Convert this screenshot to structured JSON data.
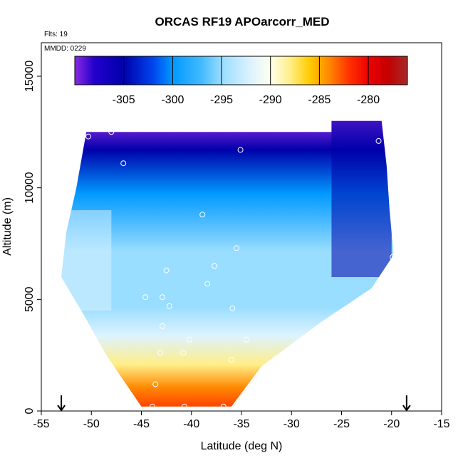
{
  "chart_data": {
    "type": "heatmap",
    "title": "ORCAS RF19 APOarcorr_MED",
    "annotations": {
      "flights": "Flts: 19",
      "mmdd": "MMDD: 0229"
    },
    "xlabel": "Latitude (deg N)",
    "ylabel": "Altitude (m)",
    "xlim": [
      -55,
      -15
    ],
    "ylim": [
      0,
      16500
    ],
    "x_ticks": [
      -55,
      -50,
      -45,
      -40,
      -35,
      -30,
      -25,
      -20,
      -15
    ],
    "y_ticks": [
      0,
      5000,
      10000,
      15000
    ],
    "colorbar": {
      "range": [
        -310,
        -276
      ],
      "ticks": [
        -305,
        -300,
        -295,
        -290,
        -285,
        -280
      ],
      "stops": [
        {
          "v": -310,
          "color": "#8a2be2"
        },
        {
          "v": -308,
          "color": "#2200cc"
        },
        {
          "v": -305,
          "color": "#0000aa"
        },
        {
          "v": -302,
          "color": "#0044ee"
        },
        {
          "v": -300,
          "color": "#0099ff"
        },
        {
          "v": -297,
          "color": "#44bbff"
        },
        {
          "v": -295,
          "color": "#99ddff"
        },
        {
          "v": -292,
          "color": "#ddf3ff"
        },
        {
          "v": -290,
          "color": "#ffffee"
        },
        {
          "v": -288,
          "color": "#ffee88"
        },
        {
          "v": -286,
          "color": "#ffcc00"
        },
        {
          "v": -284,
          "color": "#ff8800"
        },
        {
          "v": -282,
          "color": "#ff3300"
        },
        {
          "v": -280,
          "color": "#ee0000"
        },
        {
          "v": -278,
          "color": "#c40000"
        },
        {
          "v": -276,
          "color": "#a52a2a"
        }
      ]
    },
    "domain_outline": [
      [
        -50.5,
        12500
      ],
      [
        -26,
        12500
      ],
      [
        -26,
        13000
      ],
      [
        -21,
        13000
      ],
      [
        -20.5,
        11000
      ],
      [
        -20.2,
        9000
      ],
      [
        -19.8,
        7000
      ],
      [
        -22,
        5500
      ],
      [
        -27,
        4000
      ],
      [
        -33,
        2000
      ],
      [
        -36,
        200
      ],
      [
        -45,
        200
      ],
      [
        -48.5,
        2500
      ],
      [
        -51,
        4500
      ],
      [
        -53,
        6000
      ],
      [
        -52.5,
        8000
      ],
      [
        -51.5,
        10000
      ]
    ],
    "series": [
      {
        "name": "",
        "points": [
          [
            -50.3,
            12300
          ],
          [
            -48.0,
            12500
          ],
          [
            -35.6,
            12700
          ],
          [
            -21.3,
            12100
          ],
          [
            -35.1,
            11700
          ],
          [
            -46.8,
            11100
          ],
          [
            -38.9,
            8800
          ],
          [
            -35.5,
            7300
          ],
          [
            -19.9,
            6900
          ],
          [
            -37.7,
            6500
          ],
          [
            -42.5,
            6300
          ],
          [
            -38.4,
            5700
          ],
          [
            -44.6,
            5100
          ],
          [
            -42.9,
            5100
          ],
          [
            -42.2,
            4700
          ],
          [
            -35.9,
            4600
          ],
          [
            -42.9,
            3800
          ],
          [
            -34.5,
            3200
          ],
          [
            -40.2,
            3200
          ],
          [
            -40.8,
            2600
          ],
          [
            -43.1,
            2600
          ],
          [
            -36.0,
            2300
          ],
          [
            -43.6,
            1200
          ],
          [
            -43.9,
            200
          ],
          [
            -40.7,
            200
          ],
          [
            -36.8,
            200
          ]
        ]
      }
    ],
    "flight_markers_lat": [
      -53,
      -18.5
    ],
    "background_field_description_values": {
      "low_levels_near": -280,
      "mid_levels": -293,
      "upper_levels": -302,
      "top_edge": -308
    }
  }
}
